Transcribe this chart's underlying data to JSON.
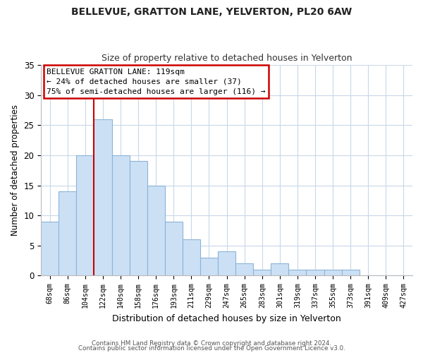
{
  "title": "BELLEVUE, GRATTON LANE, YELVERTON, PL20 6AW",
  "subtitle": "Size of property relative to detached houses in Yelverton",
  "xlabel": "Distribution of detached houses by size in Yelverton",
  "ylabel": "Number of detached properties",
  "bar_labels": [
    "68sqm",
    "86sqm",
    "104sqm",
    "122sqm",
    "140sqm",
    "158sqm",
    "176sqm",
    "193sqm",
    "211sqm",
    "229sqm",
    "247sqm",
    "265sqm",
    "283sqm",
    "301sqm",
    "319sqm",
    "337sqm",
    "355sqm",
    "373sqm",
    "391sqm",
    "409sqm",
    "427sqm"
  ],
  "bar_values": [
    9,
    14,
    20,
    26,
    20,
    19,
    15,
    9,
    6,
    3,
    4,
    2,
    1,
    2,
    1,
    1,
    1,
    1,
    0,
    0,
    0
  ],
  "bar_color": "#cce0f5",
  "bar_edge_color": "#8ab4d8",
  "vline_color": "#cc0000",
  "vline_index": 3,
  "annotation_text_line1": "BELLEVUE GRATTON LANE: 119sqm",
  "annotation_text_line2": "← 24% of detached houses are smaller (37)",
  "annotation_text_line3": "75% of semi-detached houses are larger (116) →",
  "ylim": [
    0,
    35
  ],
  "yticks": [
    0,
    5,
    10,
    15,
    20,
    25,
    30,
    35
  ],
  "footer_line1": "Contains HM Land Registry data © Crown copyright and database right 2024.",
  "footer_line2": "Contains public sector information licensed under the Open Government Licence v3.0.",
  "background_color": "#ffffff",
  "grid_color": "#c8d8e8",
  "title_fontsize": 10,
  "subtitle_fontsize": 9
}
